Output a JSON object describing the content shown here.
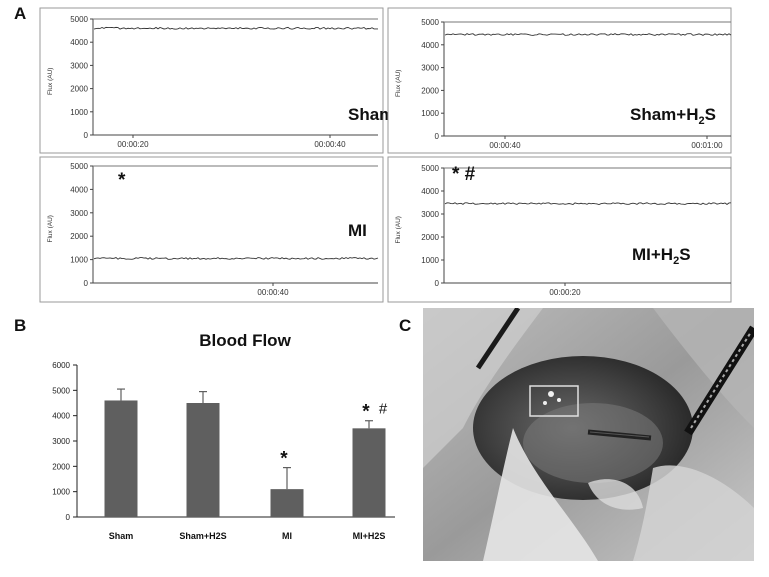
{
  "figure": {
    "panel_a_letter": "A",
    "panel_b_letter": "B",
    "panel_c_letter": "C"
  },
  "traces": [
    {
      "label": "Sham",
      "ylabel": "Flux (AU)",
      "yticks": [
        "5000",
        "4000",
        "3000",
        "2000",
        "1000",
        "0"
      ],
      "xticks": [
        "00:00:20",
        "00:00:40"
      ],
      "level": 4600,
      "markers": ""
    },
    {
      "label": "Sham+H",
      "label_sub": "2",
      "label_tail": "S",
      "ylabel": "Flux (AU)",
      "yticks": [
        "5000",
        "4000",
        "3000",
        "2000",
        "1000",
        "0"
      ],
      "xticks": [
        "00:00:40",
        "00:01:00"
      ],
      "level": 4450,
      "markers": ""
    },
    {
      "label": "MI",
      "ylabel": "Flux (AU)",
      "yticks": [
        "5000",
        "4000",
        "3000",
        "2000",
        "1000",
        "0"
      ],
      "xticks": [
        "00:00:40"
      ],
      "level": 1050,
      "markers": "*"
    },
    {
      "label": "MI+H",
      "label_sub": "2",
      "label_tail": "S",
      "ylabel": "Flux (AU)",
      "yticks": [
        "5000",
        "4000",
        "3000",
        "2000",
        "1000",
        "0"
      ],
      "xticks": [
        "00:00:20"
      ],
      "level": 3450,
      "markers": "*  #"
    }
  ],
  "chart_data": {
    "type": "bar",
    "title": "Blood Flow",
    "categories": [
      "Sham",
      "Sham+H2S",
      "MI",
      "MI+H2S"
    ],
    "values": [
      4600,
      4500,
      1100,
      3500
    ],
    "errors": [
      450,
      450,
      850,
      300
    ],
    "annotations": [
      "",
      "",
      "*",
      "* #"
    ],
    "ylim": [
      0,
      6000
    ],
    "yticks": [
      0,
      1000,
      2000,
      3000,
      4000,
      5000,
      6000
    ],
    "xlabel": "",
    "ylabel": ""
  },
  "colors": {
    "bar": "#5f5f5f",
    "axis": "#222222",
    "trace": "#333333",
    "frame": "#9a9a9a"
  }
}
